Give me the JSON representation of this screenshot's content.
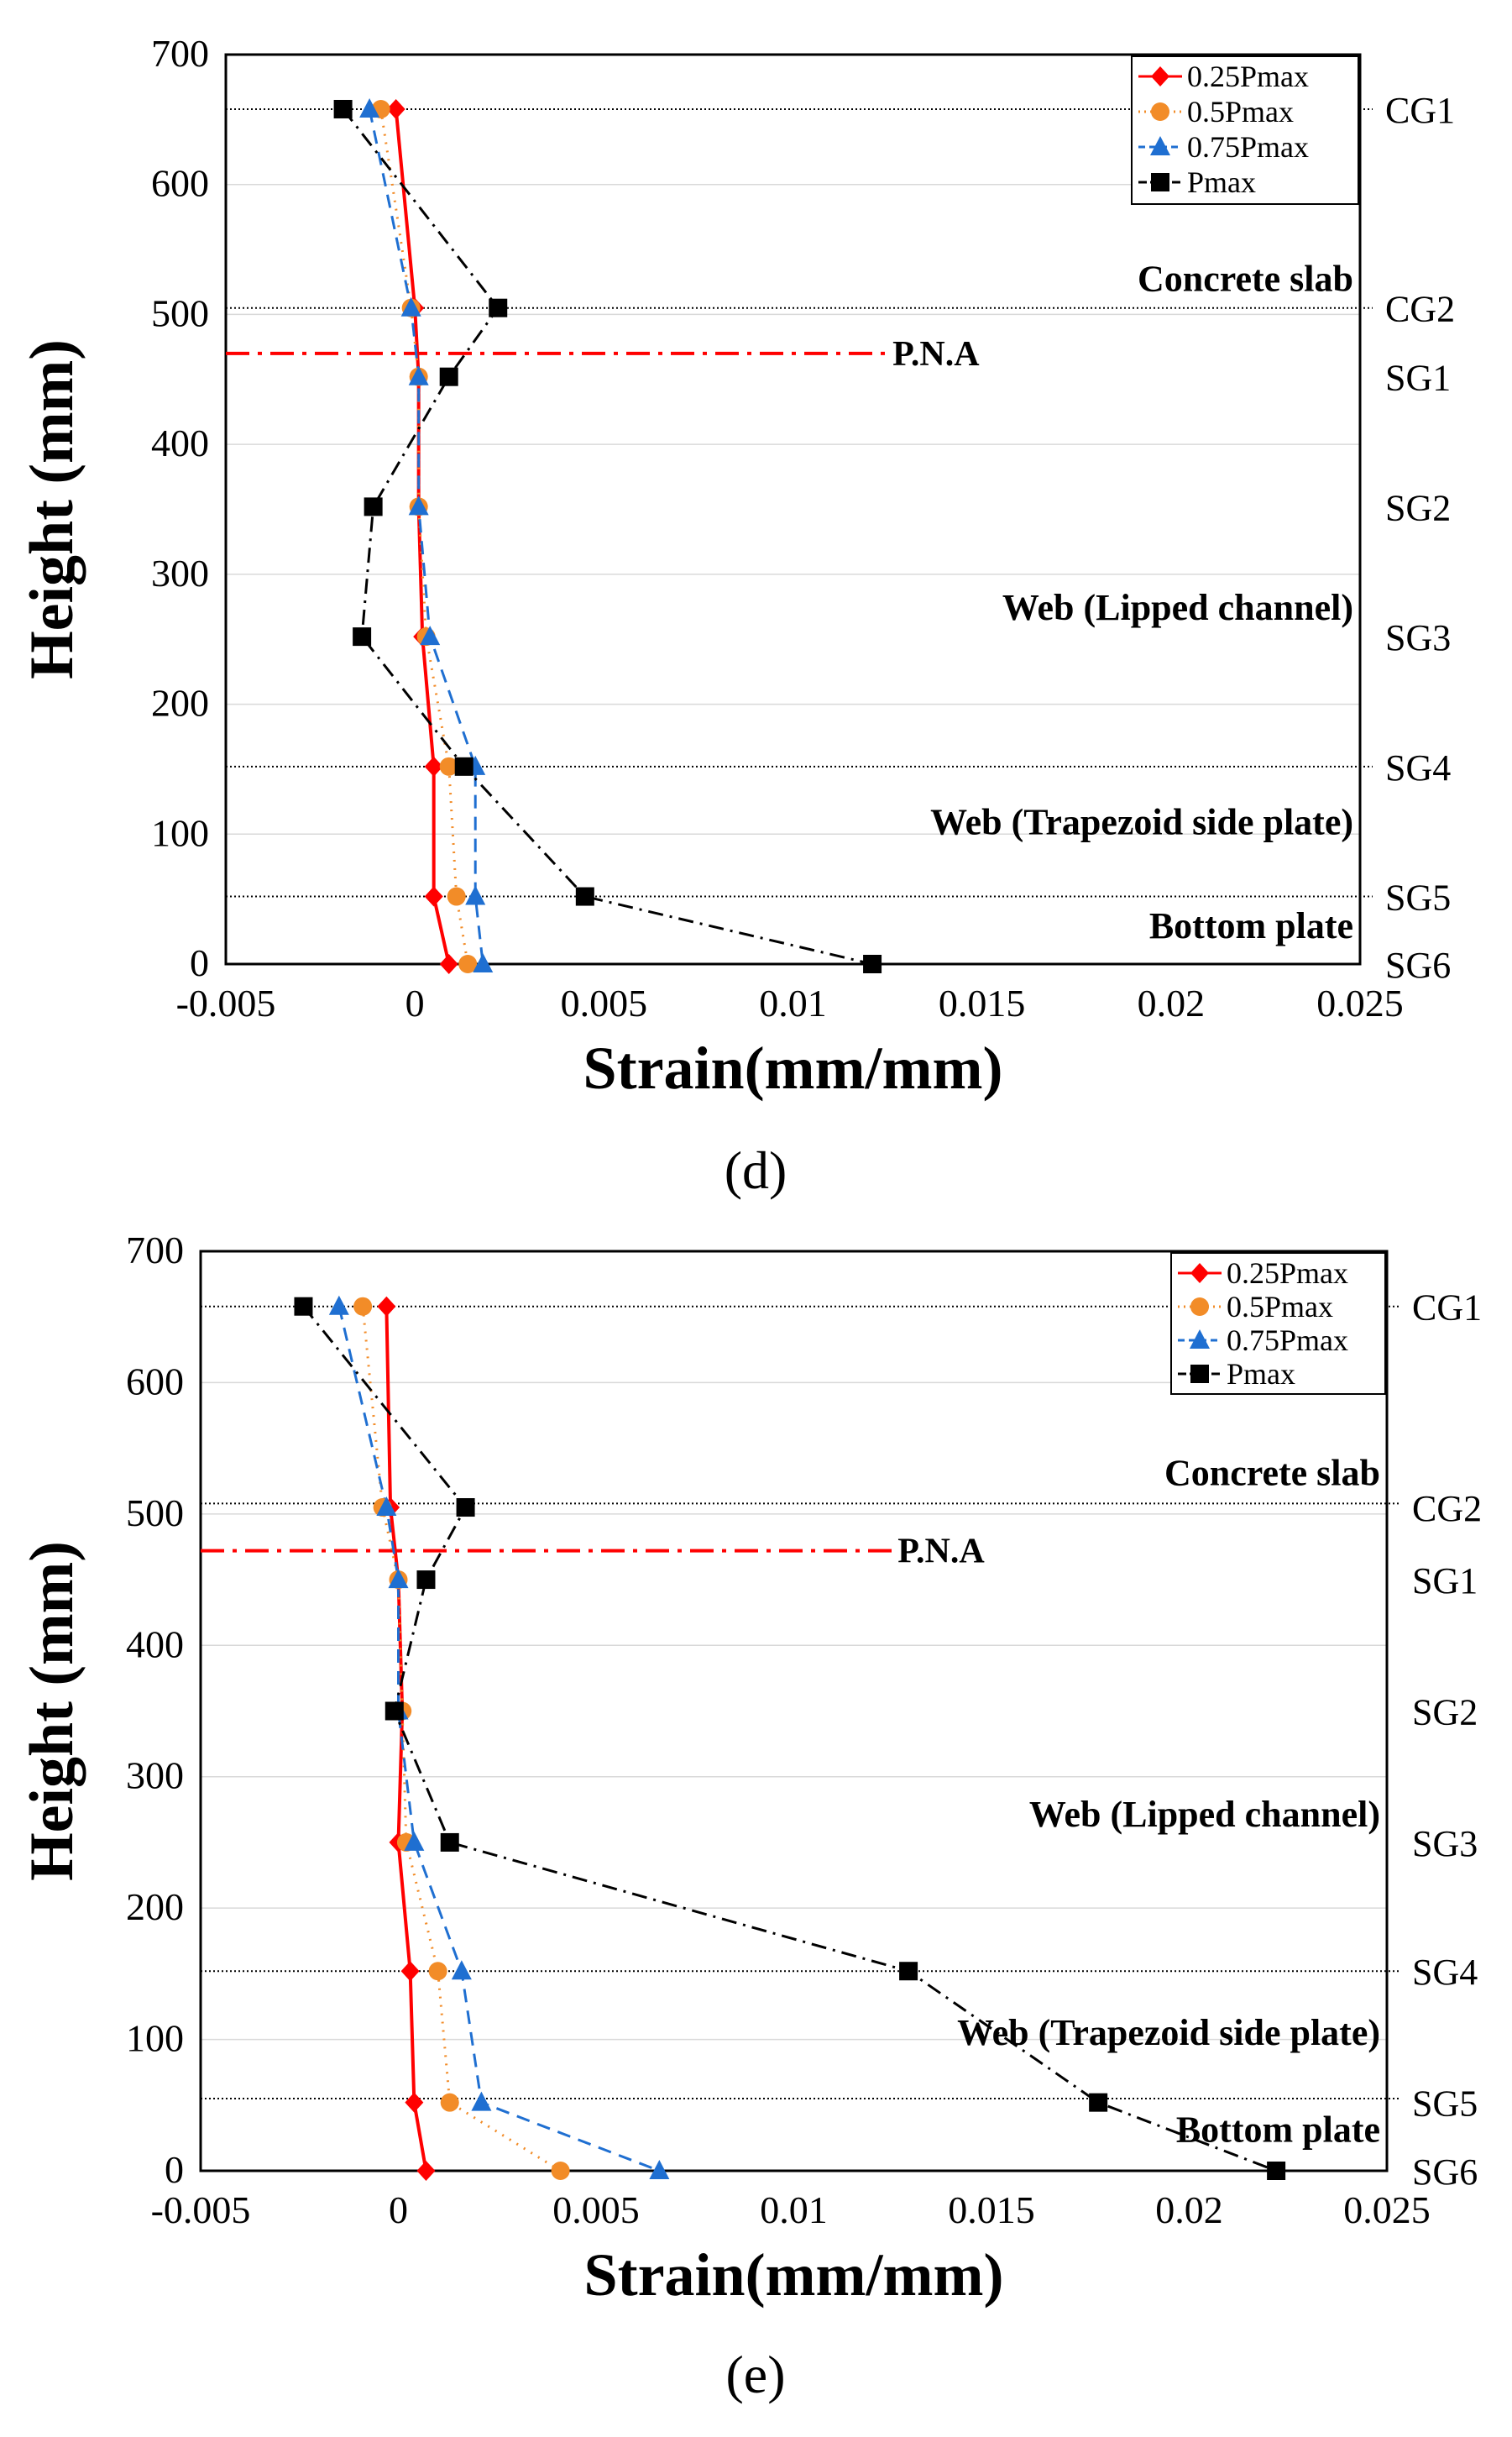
{
  "colors": {
    "p025": "#ff0000",
    "p05": "#f28c28",
    "p075": "#1f6fd1",
    "pmax": "#000000",
    "pna": "#ff0000",
    "guide": "#000000"
  },
  "chart_data": [
    {
      "type": "line",
      "panel_label": "(d)",
      "xlabel": "Strain(mm/mm)",
      "ylabel": "Height (mm)",
      "xlim": [
        -0.005,
        0.025
      ],
      "ylim": [
        0,
        700
      ],
      "xticks": [
        -0.005,
        0,
        0.005,
        0.01,
        0.015,
        0.02,
        0.025
      ],
      "xtick_labels": [
        "-0.005",
        "0",
        "0.005",
        "0.01",
        "0.015",
        "0.02",
        "0.025"
      ],
      "yticks": [
        0,
        100,
        200,
        300,
        400,
        500,
        600,
        700
      ],
      "ytick_labels": [
        "0",
        "100",
        "200",
        "300",
        "400",
        "500",
        "600",
        "700"
      ],
      "legend_position": "top-right",
      "gauge_levels": [
        {
          "name": "CG1",
          "y": 658
        },
        {
          "name": "CG2",
          "y": 505
        },
        {
          "name": "SG1",
          "y": 452
        },
        {
          "name": "SG2",
          "y": 352
        },
        {
          "name": "SG3",
          "y": 252
        },
        {
          "name": "SG4",
          "y": 152
        },
        {
          "name": "SG5",
          "y": 52
        },
        {
          "name": "SG6",
          "y": 0
        }
      ],
      "guide_lines": [
        658,
        505,
        152,
        52
      ],
      "pna": {
        "label": "P.N.A",
        "y": 470,
        "x_end": 0.0125
      },
      "region_labels": [
        {
          "text": "Concrete slab",
          "y": 518
        },
        {
          "text": "Web (Lipped channel)",
          "y": 265
        },
        {
          "text": "Web (Trapezoid side plate)",
          "y": 100
        },
        {
          "text": "Bottom plate",
          "y": 20
        }
      ],
      "series": [
        {
          "name": "0.25Pmax",
          "marker": "diamond",
          "dash": "solid",
          "color_key": "p025",
          "x": [
            -0.0005,
            0.0,
            0.0001,
            0.0001,
            0.0002,
            0.0005,
            0.0005,
            0.0009
          ],
          "y": [
            658,
            505,
            452,
            352,
            252,
            152,
            52,
            0
          ]
        },
        {
          "name": "0.5Pmax",
          "marker": "circle",
          "dash": "dotted",
          "color_key": "p05",
          "x": [
            -0.0009,
            -0.0001,
            0.0001,
            0.0001,
            0.0003,
            0.0009,
            0.0011,
            0.0014
          ],
          "y": [
            658,
            505,
            452,
            352,
            252,
            152,
            52,
            0
          ]
        },
        {
          "name": "0.75Pmax",
          "marker": "triangle",
          "dash": "dashed",
          "color_key": "p075",
          "x": [
            -0.0012,
            -0.0001,
            0.0001,
            0.0001,
            0.0004,
            0.0016,
            0.0016,
            0.0018
          ],
          "y": [
            658,
            505,
            452,
            352,
            252,
            152,
            52,
            0
          ]
        },
        {
          "name": "Pmax",
          "marker": "square",
          "dash": "dashdot",
          "color_key": "pmax",
          "x": [
            -0.0019,
            0.0022,
            0.0009,
            -0.0011,
            -0.0014,
            0.0013,
            0.0045,
            0.0121
          ],
          "y": [
            658,
            505,
            452,
            352,
            252,
            152,
            52,
            0
          ]
        }
      ]
    },
    {
      "type": "line",
      "panel_label": "(e)",
      "xlabel": "Strain(mm/mm)",
      "ylabel": "Height (mm)",
      "xlim": [
        -0.005,
        0.025
      ],
      "ylim": [
        0,
        700
      ],
      "xticks": [
        -0.005,
        0,
        0.005,
        0.01,
        0.015,
        0.02,
        0.025
      ],
      "xtick_labels": [
        "-0.005",
        "0",
        "0.005",
        "0.01",
        "0.015",
        "0.02",
        "0.025"
      ],
      "yticks": [
        0,
        100,
        200,
        300,
        400,
        500,
        600,
        700
      ],
      "ytick_labels": [
        "0",
        "100",
        "200",
        "300",
        "400",
        "500",
        "600",
        "700"
      ],
      "legend_position": "top-right",
      "gauge_levels": [
        {
          "name": "CG1",
          "y": 658
        },
        {
          "name": "CG2",
          "y": 505
        },
        {
          "name": "SG1",
          "y": 450
        },
        {
          "name": "SG2",
          "y": 350
        },
        {
          "name": "SG3",
          "y": 250
        },
        {
          "name": "SG4",
          "y": 152
        },
        {
          "name": "SG5",
          "y": 52
        },
        {
          "name": "SG6",
          "y": 0
        }
      ],
      "guide_lines": [
        658,
        508,
        152,
        55
      ],
      "pna": {
        "label": "P.N.A",
        "y": 472,
        "x_end": 0.0125
      },
      "region_labels": [
        {
          "text": "Concrete slab",
          "y": 522
        },
        {
          "text": "Web (Lipped channel)",
          "y": 262
        },
        {
          "text": "Web (Trapezoid side plate)",
          "y": 96
        },
        {
          "text": "Bottom plate",
          "y": 22
        }
      ],
      "series": [
        {
          "name": "0.25Pmax",
          "marker": "diamond",
          "dash": "solid",
          "color_key": "p025",
          "x": [
            -0.0003,
            -0.0002,
            0.0,
            0.0001,
            0.0,
            0.0003,
            0.0004,
            0.0007
          ],
          "y": [
            658,
            505,
            450,
            350,
            250,
            152,
            52,
            0
          ]
        },
        {
          "name": "0.5Pmax",
          "marker": "circle",
          "dash": "dotted",
          "color_key": "p05",
          "x": [
            -0.0009,
            -0.0004,
            0.0,
            0.0001,
            0.0002,
            0.001,
            0.0013,
            0.0041
          ],
          "y": [
            658,
            505,
            450,
            350,
            250,
            152,
            52,
            0
          ]
        },
        {
          "name": "0.75Pmax",
          "marker": "triangle",
          "dash": "dashed",
          "color_key": "p075",
          "x": [
            -0.0015,
            -0.0003,
            0.0,
            0.0,
            0.0004,
            0.0016,
            0.0021,
            0.0066
          ],
          "y": [
            658,
            505,
            450,
            350,
            250,
            152,
            52,
            0
          ]
        },
        {
          "name": "Pmax",
          "marker": "square",
          "dash": "dashdot",
          "color_key": "pmax",
          "x": [
            -0.0024,
            0.0017,
            0.0007,
            -0.0001,
            0.0013,
            0.0129,
            0.0177,
            0.0222
          ],
          "y": [
            658,
            505,
            450,
            350,
            250,
            152,
            52,
            0
          ]
        }
      ]
    }
  ]
}
